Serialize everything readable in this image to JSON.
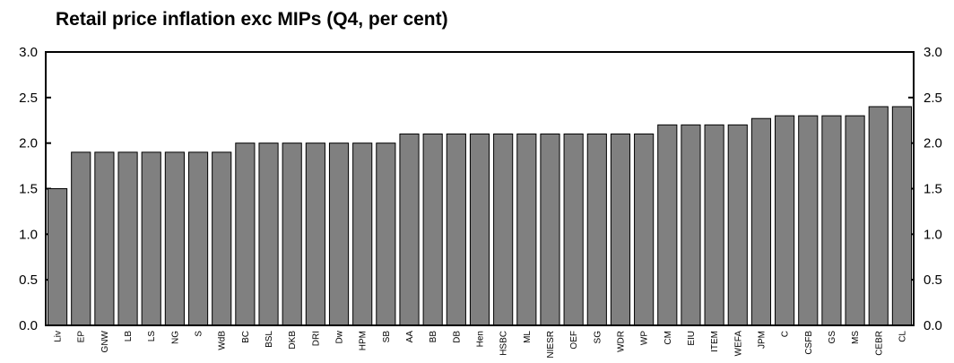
{
  "chart_data": {
    "type": "bar",
    "title": "Retail price inflation exc MIPs (Q4, per cent)",
    "xlabel": "",
    "ylabel": "",
    "ylim": [
      0,
      3.0
    ],
    "y_ticks": [
      "0.0",
      "0.5",
      "1.0",
      "1.5",
      "2.0",
      "2.5",
      "3.0"
    ],
    "right_axis_mirrored": true,
    "grid": false,
    "legend": "none",
    "categories": [
      "Liv",
      "EP",
      "GNW",
      "LB",
      "LS",
      "NG",
      "S",
      "WdB",
      "BC",
      "BSL",
      "DKB",
      "DRI",
      "Dw",
      "HPM",
      "SB",
      "AA",
      "BB",
      "DB",
      "Hen",
      "HSBC",
      "ML",
      "NIESR",
      "OEF",
      "SG",
      "WDR",
      "WP",
      "CM",
      "EIU",
      "ITEM",
      "WEFA",
      "JPM",
      "C",
      "CSFB",
      "GS",
      "MS",
      "CEBR",
      "CL"
    ],
    "values": [
      1.5,
      1.9,
      1.9,
      1.9,
      1.9,
      1.9,
      1.9,
      1.9,
      2.0,
      2.0,
      2.0,
      2.0,
      2.0,
      2.0,
      2.0,
      2.1,
      2.1,
      2.1,
      2.1,
      2.1,
      2.1,
      2.1,
      2.1,
      2.1,
      2.1,
      2.1,
      2.2,
      2.2,
      2.2,
      2.2,
      2.27,
      2.3,
      2.3,
      2.3,
      2.3,
      2.4,
      2.4
    ],
    "colors": {
      "bar_fill": "#808080",
      "bar_stroke": "#000000",
      "axis": "#000000"
    }
  }
}
